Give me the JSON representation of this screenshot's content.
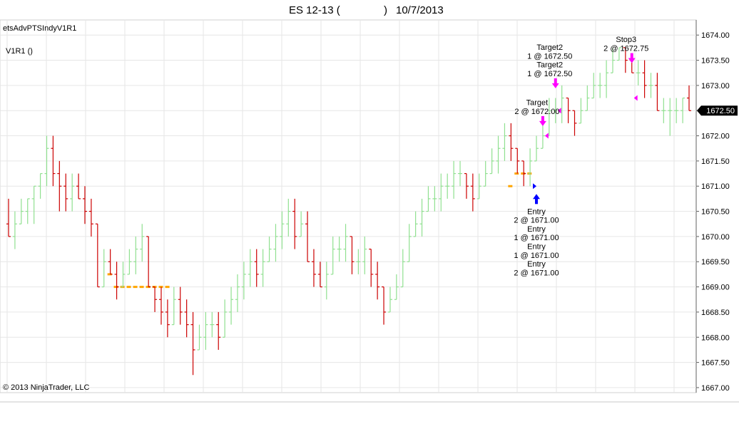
{
  "window": {
    "title_symbol": "ES 12-13 (",
    "title_close": ")",
    "title_date": "10/7/2013"
  },
  "indicator_label": "etsAdvPTSIndyV1R1",
  "panel_label": "V1R1 ()",
  "copyright": "© 2013 NinjaTrader, LLC",
  "colors": {
    "up_bar": "#90e090",
    "down_bar": "#cc0000",
    "entry_marker": "#ffa500",
    "exit_arrow": "#ff00ff",
    "entry_arrow": "#0000ff",
    "price_marker_bg": "#000000",
    "grid": "#e6e6e6"
  },
  "chart_data": {
    "type": "bar",
    "symbol": "ES 12-13",
    "date": "10/7/2013",
    "ylim": [
      1666.9,
      1674.3
    ],
    "y_ticks": [
      1674.0,
      1673.5,
      1673.0,
      1672.5,
      1672.0,
      1671.5,
      1671.0,
      1670.5,
      1670.0,
      1669.5,
      1669.0,
      1668.5,
      1668.0,
      1667.5,
      1667.0
    ],
    "y_tick_labels": [
      "1674.00",
      "1673.50",
      "1673.00",
      "1672.50",
      "1672.00",
      "1671.50",
      "1671.00",
      "1670.50",
      "1670.00",
      "1669.50",
      "1669.00",
      "1668.50",
      "1668.00",
      "1667.50",
      "1667.00"
    ],
    "current_price_label": "1672.50",
    "current_price": 1672.5,
    "bars": [
      {
        "o": 1670.25,
        "h": 1670.75,
        "l": 1670.0,
        "c": 1670.0
      },
      {
        "o": 1670.0,
        "h": 1670.5,
        "l": 1669.75,
        "c": 1670.25
      },
      {
        "o": 1670.25,
        "h": 1670.75,
        "l": 1670.25,
        "c": 1670.5
      },
      {
        "o": 1670.5,
        "h": 1670.75,
        "l": 1670.25,
        "c": 1670.75
      },
      {
        "o": 1670.75,
        "h": 1671.0,
        "l": 1670.25,
        "c": 1671.0
      },
      {
        "o": 1671.0,
        "h": 1671.25,
        "l": 1670.75,
        "c": 1671.25
      },
      {
        "o": 1671.25,
        "h": 1672.0,
        "l": 1671.0,
        "c": 1671.75
      },
      {
        "o": 1671.75,
        "h": 1672.0,
        "l": 1671.0,
        "c": 1671.25
      },
      {
        "o": 1671.25,
        "h": 1671.5,
        "l": 1670.5,
        "c": 1671.0
      },
      {
        "o": 1671.0,
        "h": 1671.25,
        "l": 1670.5,
        "c": 1670.75
      },
      {
        "o": 1670.75,
        "h": 1671.25,
        "l": 1670.5,
        "c": 1671.0
      },
      {
        "o": 1671.0,
        "h": 1671.25,
        "l": 1670.75,
        "c": 1670.75
      },
      {
        "o": 1670.75,
        "h": 1671.0,
        "l": 1670.25,
        "c": 1670.5
      },
      {
        "o": 1670.5,
        "h": 1670.75,
        "l": 1670.0,
        "c": 1670.25
      },
      {
        "o": 1670.25,
        "h": 1670.25,
        "l": 1669.0,
        "c": 1669.0
      },
      {
        "o": 1669.0,
        "h": 1669.75,
        "l": 1669.0,
        "c": 1669.5
      },
      {
        "o": 1669.5,
        "h": 1669.75,
        "l": 1669.25,
        "c": 1669.25
      },
      {
        "o": 1669.25,
        "h": 1669.5,
        "l": 1668.75,
        "c": 1669.0
      },
      {
        "o": 1669.0,
        "h": 1669.5,
        "l": 1669.0,
        "c": 1669.25
      },
      {
        "o": 1669.25,
        "h": 1669.75,
        "l": 1669.25,
        "c": 1669.5
      },
      {
        "o": 1669.5,
        "h": 1670.0,
        "l": 1669.25,
        "c": 1669.75
      },
      {
        "o": 1669.75,
        "h": 1670.25,
        "l": 1669.5,
        "c": 1670.0
      },
      {
        "o": 1670.0,
        "h": 1670.0,
        "l": 1669.0,
        "c": 1669.0
      },
      {
        "o": 1669.0,
        "h": 1669.0,
        "l": 1668.5,
        "c": 1668.75
      },
      {
        "o": 1668.75,
        "h": 1669.0,
        "l": 1668.25,
        "c": 1668.5
      },
      {
        "o": 1668.5,
        "h": 1668.75,
        "l": 1668.0,
        "c": 1668.25
      },
      {
        "o": 1668.25,
        "h": 1669.0,
        "l": 1668.25,
        "c": 1668.75
      },
      {
        "o": 1668.75,
        "h": 1669.0,
        "l": 1668.25,
        "c": 1668.5
      },
      {
        "o": 1668.5,
        "h": 1668.75,
        "l": 1668.0,
        "c": 1668.25
      },
      {
        "o": 1668.25,
        "h": 1668.5,
        "l": 1667.25,
        "c": 1667.75
      },
      {
        "o": 1667.75,
        "h": 1668.25,
        "l": 1667.75,
        "c": 1668.0
      },
      {
        "o": 1668.0,
        "h": 1668.5,
        "l": 1667.75,
        "c": 1668.25
      },
      {
        "o": 1668.25,
        "h": 1668.5,
        "l": 1668.0,
        "c": 1668.25
      },
      {
        "o": 1668.25,
        "h": 1668.5,
        "l": 1667.75,
        "c": 1668.0
      },
      {
        "o": 1668.0,
        "h": 1668.75,
        "l": 1668.0,
        "c": 1668.5
      },
      {
        "o": 1668.5,
        "h": 1669.0,
        "l": 1668.25,
        "c": 1668.75
      },
      {
        "o": 1668.75,
        "h": 1669.25,
        "l": 1668.5,
        "c": 1669.0
      },
      {
        "o": 1669.0,
        "h": 1669.5,
        "l": 1668.75,
        "c": 1669.25
      },
      {
        "o": 1669.25,
        "h": 1669.75,
        "l": 1669.0,
        "c": 1669.5
      },
      {
        "o": 1669.5,
        "h": 1669.75,
        "l": 1669.0,
        "c": 1669.25
      },
      {
        "o": 1669.25,
        "h": 1669.75,
        "l": 1669.0,
        "c": 1669.5
      },
      {
        "o": 1669.5,
        "h": 1670.0,
        "l": 1669.5,
        "c": 1669.75
      },
      {
        "o": 1669.75,
        "h": 1670.25,
        "l": 1669.5,
        "c": 1670.0
      },
      {
        "o": 1670.0,
        "h": 1670.5,
        "l": 1669.75,
        "c": 1670.25
      },
      {
        "o": 1670.25,
        "h": 1670.75,
        "l": 1670.0,
        "c": 1670.5
      },
      {
        "o": 1670.5,
        "h": 1670.75,
        "l": 1669.75,
        "c": 1670.0
      },
      {
        "o": 1670.0,
        "h": 1670.5,
        "l": 1670.0,
        "c": 1670.25
      },
      {
        "o": 1670.25,
        "h": 1670.5,
        "l": 1669.5,
        "c": 1669.5
      },
      {
        "o": 1669.5,
        "h": 1669.75,
        "l": 1669.0,
        "c": 1669.25
      },
      {
        "o": 1669.25,
        "h": 1669.5,
        "l": 1669.0,
        "c": 1669.0
      },
      {
        "o": 1669.0,
        "h": 1669.5,
        "l": 1668.75,
        "c": 1669.25
      },
      {
        "o": 1669.25,
        "h": 1670.0,
        "l": 1669.25,
        "c": 1669.75
      },
      {
        "o": 1669.75,
        "h": 1670.0,
        "l": 1669.5,
        "c": 1669.75
      },
      {
        "o": 1669.75,
        "h": 1670.25,
        "l": 1669.5,
        "c": 1670.0
      },
      {
        "o": 1670.0,
        "h": 1670.0,
        "l": 1669.25,
        "c": 1669.5
      },
      {
        "o": 1669.5,
        "h": 1669.75,
        "l": 1669.25,
        "c": 1669.5
      },
      {
        "o": 1669.5,
        "h": 1670.0,
        "l": 1669.25,
        "c": 1669.75
      },
      {
        "o": 1669.75,
        "h": 1669.75,
        "l": 1669.0,
        "c": 1669.25
      },
      {
        "o": 1669.25,
        "h": 1669.5,
        "l": 1668.75,
        "c": 1669.0
      },
      {
        "o": 1669.0,
        "h": 1669.0,
        "l": 1668.25,
        "c": 1668.5
      },
      {
        "o": 1668.5,
        "h": 1669.0,
        "l": 1668.5,
        "c": 1668.75
      },
      {
        "o": 1668.75,
        "h": 1669.25,
        "l": 1668.75,
        "c": 1669.0
      },
      {
        "o": 1669.0,
        "h": 1669.75,
        "l": 1669.0,
        "c": 1669.5
      },
      {
        "o": 1669.5,
        "h": 1670.25,
        "l": 1669.5,
        "c": 1670.0
      },
      {
        "o": 1670.0,
        "h": 1670.5,
        "l": 1670.0,
        "c": 1670.25
      },
      {
        "o": 1670.25,
        "h": 1670.75,
        "l": 1670.0,
        "c": 1670.5
      },
      {
        "o": 1670.5,
        "h": 1671.0,
        "l": 1670.5,
        "c": 1670.75
      },
      {
        "o": 1670.75,
        "h": 1671.0,
        "l": 1670.5,
        "c": 1670.75
      },
      {
        "o": 1670.75,
        "h": 1671.25,
        "l": 1670.5,
        "c": 1671.0
      },
      {
        "o": 1671.0,
        "h": 1671.25,
        "l": 1670.75,
        "c": 1671.0
      },
      {
        "o": 1671.0,
        "h": 1671.5,
        "l": 1670.75,
        "c": 1671.25
      },
      {
        "o": 1671.25,
        "h": 1671.5,
        "l": 1671.0,
        "c": 1671.25
      },
      {
        "o": 1671.25,
        "h": 1671.25,
        "l": 1670.75,
        "c": 1671.0
      },
      {
        "o": 1671.0,
        "h": 1671.25,
        "l": 1670.5,
        "c": 1670.75
      },
      {
        "o": 1670.75,
        "h": 1671.25,
        "l": 1670.75,
        "c": 1671.0
      },
      {
        "o": 1671.0,
        "h": 1671.5,
        "l": 1671.0,
        "c": 1671.25
      },
      {
        "o": 1671.25,
        "h": 1671.75,
        "l": 1671.25,
        "c": 1671.5
      },
      {
        "o": 1671.5,
        "h": 1672.0,
        "l": 1671.25,
        "c": 1671.75
      },
      {
        "o": 1671.75,
        "h": 1672.25,
        "l": 1671.5,
        "c": 1672.0
      },
      {
        "o": 1672.0,
        "h": 1672.25,
        "l": 1671.5,
        "c": 1671.75
      },
      {
        "o": 1671.75,
        "h": 1671.75,
        "l": 1671.25,
        "c": 1671.5
      },
      {
        "o": 1671.5,
        "h": 1671.5,
        "l": 1671.0,
        "c": 1671.25
      },
      {
        "o": 1671.25,
        "h": 1671.75,
        "l": 1671.0,
        "c": 1671.5
      },
      {
        "o": 1671.5,
        "h": 1672.0,
        "l": 1671.5,
        "c": 1671.75
      },
      {
        "o": 1671.75,
        "h": 1672.25,
        "l": 1671.75,
        "c": 1672.0
      },
      {
        "o": 1672.0,
        "h": 1672.75,
        "l": 1672.0,
        "c": 1672.5
      },
      {
        "o": 1672.5,
        "h": 1672.75,
        "l": 1672.25,
        "c": 1672.5
      },
      {
        "o": 1672.5,
        "h": 1673.0,
        "l": 1672.25,
        "c": 1672.75
      },
      {
        "o": 1672.75,
        "h": 1672.75,
        "l": 1672.25,
        "c": 1672.5
      },
      {
        "o": 1672.5,
        "h": 1672.5,
        "l": 1672.0,
        "c": 1672.25
      },
      {
        "o": 1672.25,
        "h": 1672.75,
        "l": 1672.25,
        "c": 1672.5
      },
      {
        "o": 1672.5,
        "h": 1673.0,
        "l": 1672.5,
        "c": 1672.75
      },
      {
        "o": 1672.75,
        "h": 1673.25,
        "l": 1672.75,
        "c": 1673.0
      },
      {
        "o": 1673.0,
        "h": 1673.25,
        "l": 1672.75,
        "c": 1673.0
      },
      {
        "o": 1673.0,
        "h": 1673.5,
        "l": 1672.75,
        "c": 1673.25
      },
      {
        "o": 1673.25,
        "h": 1673.75,
        "l": 1673.25,
        "c": 1673.5
      },
      {
        "o": 1673.5,
        "h": 1673.75,
        "l": 1673.5,
        "c": 1673.75
      },
      {
        "o": 1673.75,
        "h": 1673.75,
        "l": 1673.25,
        "c": 1673.5
      },
      {
        "o": 1673.5,
        "h": 1673.5,
        "l": 1673.25,
        "c": 1673.25
      },
      {
        "o": 1673.25,
        "h": 1673.5,
        "l": 1673.0,
        "c": 1673.25
      },
      {
        "o": 1673.25,
        "h": 1673.5,
        "l": 1672.75,
        "c": 1673.0
      },
      {
        "o": 1673.0,
        "h": 1673.25,
        "l": 1672.75,
        "c": 1673.0
      },
      {
        "o": 1673.0,
        "h": 1673.25,
        "l": 1672.5,
        "c": 1672.5
      },
      {
        "o": 1672.5,
        "h": 1672.75,
        "l": 1672.25,
        "c": 1672.5
      },
      {
        "o": 1672.5,
        "h": 1672.75,
        "l": 1672.0,
        "c": 1672.5
      },
      {
        "o": 1672.5,
        "h": 1672.75,
        "l": 1672.25,
        "c": 1672.5
      },
      {
        "o": 1672.5,
        "h": 1672.75,
        "l": 1672.25,
        "c": 1672.75
      },
      {
        "o": 1672.75,
        "h": 1673.0,
        "l": 1672.5,
        "c": 1672.5
      }
    ],
    "entry_levels": [
      {
        "bar_from": 16,
        "bar_to": 16,
        "price": 1669.25
      },
      {
        "bar_from": 17,
        "bar_to": 25,
        "price": 1669.0
      },
      {
        "bar_from": 79,
        "bar_to": 79,
        "price": 1671.0
      },
      {
        "bar_from": 80,
        "bar_to": 82,
        "price": 1671.25
      }
    ],
    "annotations": [
      {
        "kind": "entry",
        "bar": 83,
        "price": 1670.9,
        "lines": [
          "Entry",
          "2 @ 1671.00",
          "Entry",
          "1 @ 1671.00",
          "Entry",
          "1 @ 1671.00",
          "Entry",
          "2 @ 1671.00"
        ]
      },
      {
        "kind": "target",
        "bar": 84,
        "price": 1672.25,
        "lines": [
          "Target",
          "2 @ 1672.00"
        ]
      },
      {
        "kind": "target",
        "bar": 86,
        "price": 1673.0,
        "lines": [
          "Target2",
          "1 @ 1672.50",
          "Target2",
          "1 @ 1672.50"
        ]
      },
      {
        "kind": "stop",
        "bar": 98,
        "price": 1673.5,
        "lines": [
          "Stop3",
          "2 @ 1672.75"
        ]
      }
    ],
    "exit_markers": [
      {
        "bar": 85,
        "price": 1672.0
      },
      {
        "bar": 87,
        "price": 1672.5
      },
      {
        "bar": 99,
        "price": 1672.75
      }
    ],
    "entry_markers": [
      {
        "bar": 83,
        "price": 1671.0
      }
    ]
  }
}
